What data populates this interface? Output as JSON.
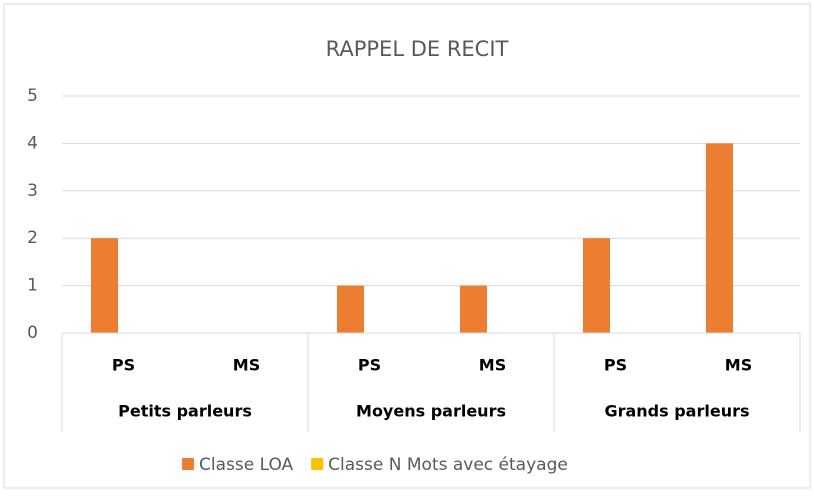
{
  "chart_data": {
    "type": "bar",
    "title": "RAPPEL DE RECIT",
    "groups": [
      {
        "name": "Petits parleurs",
        "categories": [
          "PS",
          "MS"
        ]
      },
      {
        "name": "Moyens parleurs",
        "categories": [
          "PS",
          "MS"
        ]
      },
      {
        "name": "Grands parleurs",
        "categories": [
          "PS",
          "MS"
        ]
      }
    ],
    "series": [
      {
        "name": "Classe LOA",
        "color": "#ed7d31",
        "values": [
          2,
          0,
          1,
          1,
          2,
          4
        ]
      },
      {
        "name": "Classe N Mots avec étayage",
        "color": "#ffc000",
        "values": [
          0,
          0,
          0,
          0,
          0,
          0
        ]
      }
    ],
    "ylim": [
      0,
      5
    ],
    "yticks": [
      0,
      1,
      2,
      3,
      4,
      5
    ],
    "grid": true,
    "legend": "bottom"
  }
}
